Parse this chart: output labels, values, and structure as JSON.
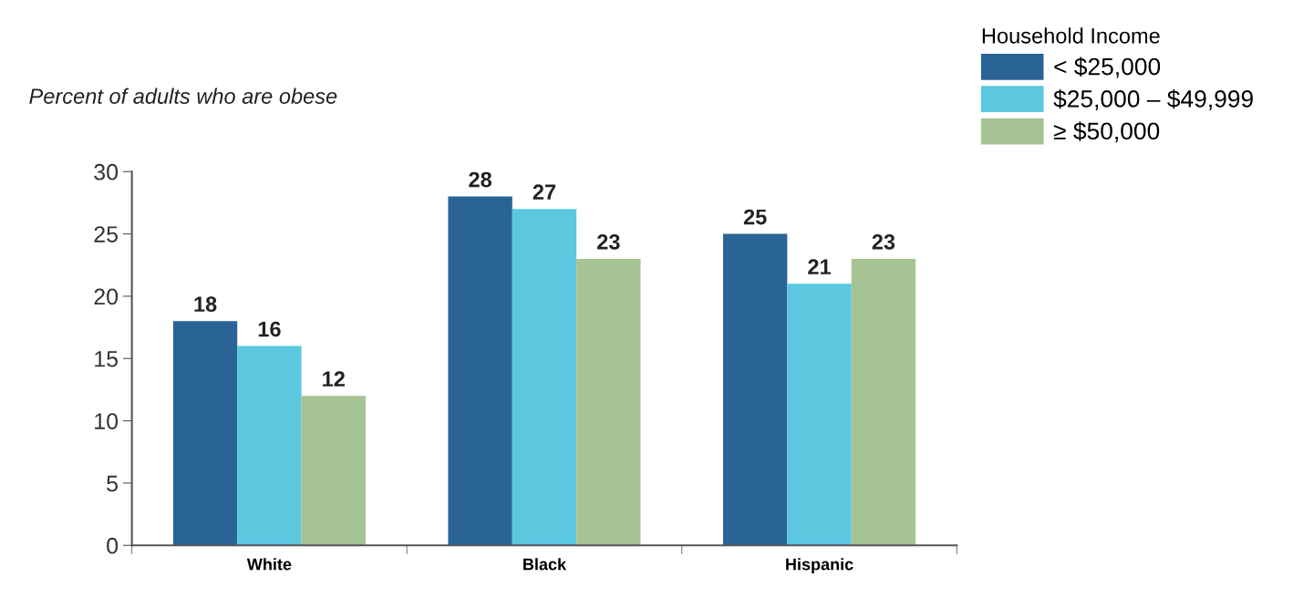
{
  "chart_data": {
    "type": "bar",
    "ylabel": "Percent of adults who are obese",
    "legend_title": "Household Income",
    "categories": [
      "White",
      "Black",
      "Hispanic"
    ],
    "series": [
      {
        "name": "< $25,000",
        "color": "#2a6496",
        "values": [
          18,
          28,
          25
        ]
      },
      {
        "name": "$25,000 – $49,999",
        "color": "#5bc8e0",
        "values": [
          16,
          27,
          21
        ]
      },
      {
        "name": "≥ $50,000",
        "color": "#a6c394",
        "values": [
          12,
          23,
          23
        ]
      }
    ],
    "ylim": [
      0,
      30
    ],
    "yticks": [
      0,
      5,
      10,
      15,
      20,
      25,
      30
    ],
    "data_labels": true,
    "grid": false,
    "legend": "top right"
  }
}
